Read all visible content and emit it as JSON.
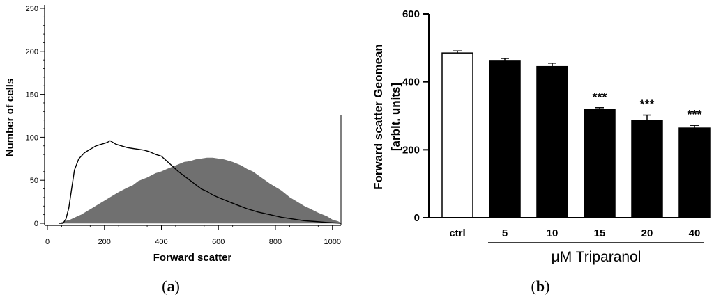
{
  "panels": {
    "a": {
      "label_open": "(",
      "letter": "a",
      "label_close": ")"
    },
    "b": {
      "label_open": "(",
      "letter": "b",
      "label_close": ")"
    }
  },
  "chart_data": [
    {
      "type": "area",
      "xlabel": "Forward scatter",
      "ylabel": "Number of cells",
      "xlim": [
        0,
        1030
      ],
      "ylim": [
        0,
        250
      ],
      "xticks": [
        0,
        200,
        400,
        600,
        800,
        1000
      ],
      "yticks": [
        0,
        50,
        100,
        150,
        200,
        250
      ],
      "series": [
        {
          "style": "filled",
          "color": "#707070",
          "x": [
            40,
            60,
            80,
            100,
            120,
            150,
            180,
            200,
            220,
            250,
            280,
            300,
            320,
            350,
            380,
            400,
            420,
            450,
            480,
            500,
            520,
            540,
            560,
            580,
            600,
            620,
            650,
            680,
            700,
            720,
            750,
            780,
            800,
            820,
            850,
            880,
            900,
            920,
            950,
            980,
            1000,
            1020,
            1030
          ],
          "y": [
            0,
            2,
            4,
            7,
            10,
            16,
            22,
            26,
            30,
            36,
            41,
            44,
            49,
            53,
            58,
            60,
            63,
            67,
            71,
            72,
            74,
            75,
            76,
            76,
            75,
            74,
            71,
            67,
            63,
            60,
            53,
            46,
            42,
            38,
            30,
            24,
            20,
            17,
            12,
            8,
            4,
            2,
            0
          ]
        },
        {
          "style": "line",
          "color": "#000000",
          "x": [
            40,
            55,
            65,
            75,
            85,
            95,
            110,
            130,
            150,
            170,
            190,
            210,
            220,
            240,
            260,
            280,
            300,
            320,
            340,
            360,
            380,
            400,
            420,
            440,
            460,
            480,
            500,
            520,
            540,
            560,
            580,
            600,
            630,
            660,
            700,
            740,
            780,
            820,
            860,
            900,
            940,
            980,
            1030
          ],
          "y": [
            0,
            0,
            5,
            18,
            40,
            62,
            75,
            82,
            86,
            90,
            92,
            94,
            96,
            92,
            90,
            88,
            87,
            86,
            85,
            83,
            80,
            78,
            72,
            66,
            60,
            55,
            50,
            45,
            40,
            37,
            33,
            30,
            26,
            22,
            17,
            13,
            10,
            7,
            5,
            3,
            2,
            1,
            0
          ]
        }
      ]
    },
    {
      "type": "bar",
      "ylabel_line1": "Forward scatter Geomean",
      "ylabel_line2": "[arblt. units]",
      "ylim": [
        0,
        600
      ],
      "yticks": [
        0,
        200,
        400,
        600
      ],
      "categories": [
        "ctrl",
        "5",
        "10",
        "15",
        "20",
        "40"
      ],
      "values": [
        485,
        463,
        445,
        318,
        287,
        264
      ],
      "errors": [
        6,
        6,
        10,
        6,
        15,
        8
      ],
      "fills": [
        "#ffffff",
        "#000000",
        "#000000",
        "#000000",
        "#000000",
        "#000000"
      ],
      "significance": [
        "",
        "",
        "",
        "***",
        "***",
        "***"
      ],
      "group_label": "μM Triparanol"
    }
  ]
}
